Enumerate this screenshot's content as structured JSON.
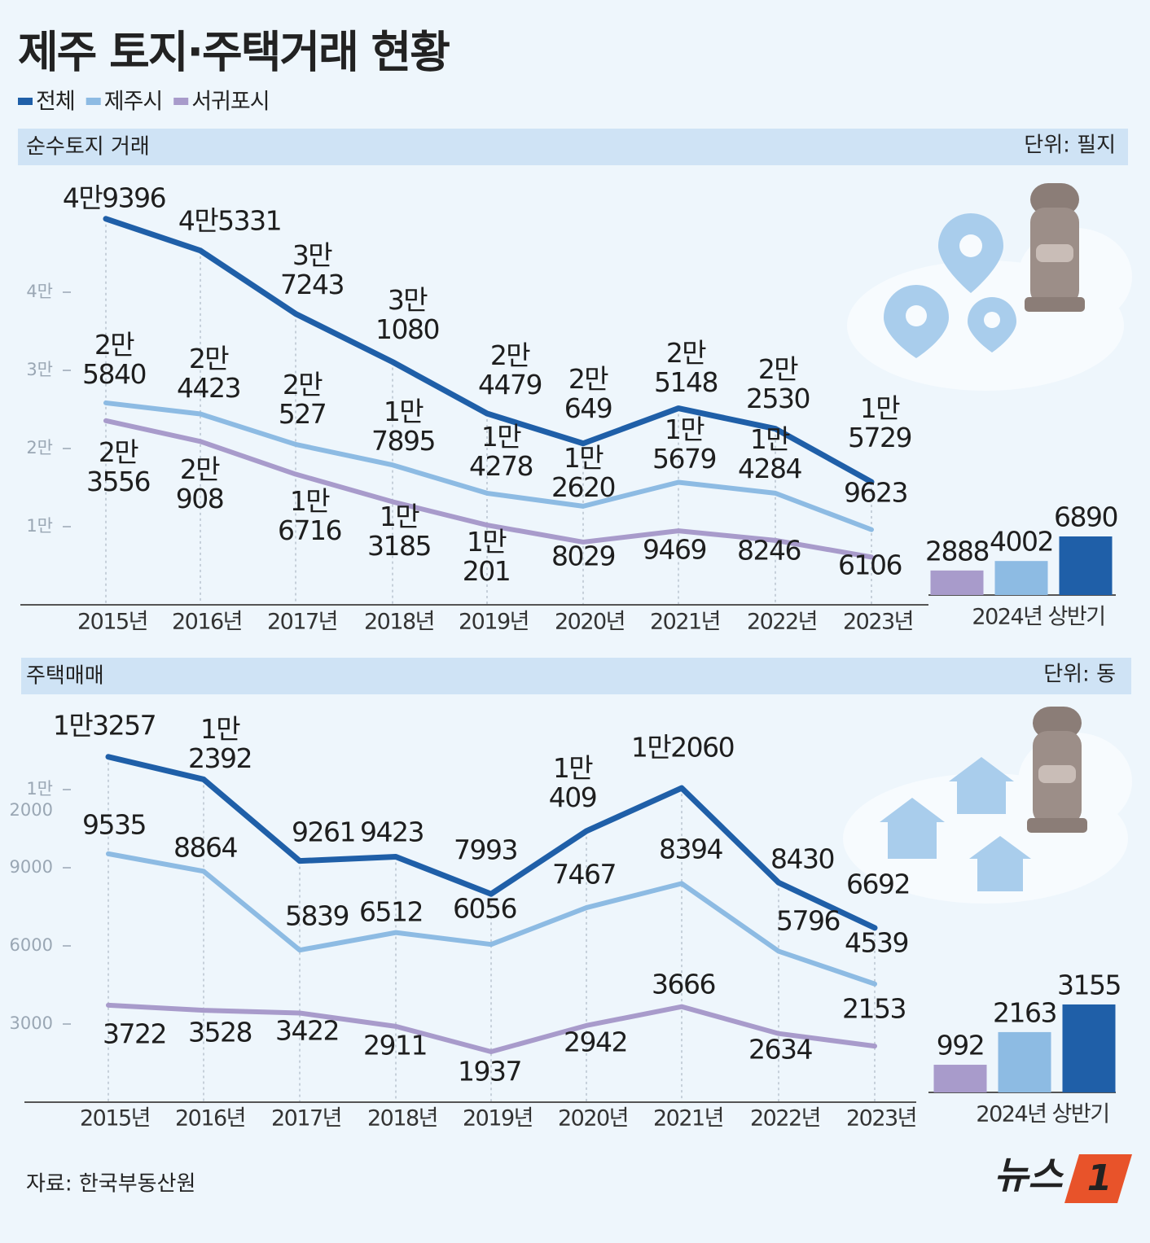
{
  "title": "제주 토지·주택거래 현황",
  "source": "자료: 한국부동산원",
  "logo": {
    "text": "뉴스",
    "mark": "1"
  },
  "chart_data": [
    {
      "type": "line",
      "subtitle": "순수토지 거래",
      "unit": "단위: 필지",
      "categories": [
        "2015년",
        "2016년",
        "2017년",
        "2018년",
        "2019년",
        "2020년",
        "2021년",
        "2022년",
        "2023년"
      ],
      "ylim": [
        0,
        50000
      ],
      "yticks": [
        {
          "value": 10000,
          "label": "1만"
        },
        {
          "value": 20000,
          "label": "2만"
        },
        {
          "value": 30000,
          "label": "3만"
        },
        {
          "value": 40000,
          "label": "4만"
        }
      ],
      "series": [
        {
          "name": "전체",
          "color": "#1f5fa8",
          "values": [
            49396,
            45331,
            37243,
            31080,
            24479,
            20649,
            25148,
            22530,
            15729
          ],
          "value_labels": [
            "4만9396",
            "4만5331",
            "3만\n7243",
            "3만\n1080",
            "2만\n4479",
            "2만\n649",
            "2만\n5148",
            "2만\n2530",
            "1만\n5729"
          ]
        },
        {
          "name": "제주시",
          "color": "#8dbbe3",
          "values": [
            25840,
            24423,
            20527,
            17895,
            14278,
            12620,
            15679,
            14284,
            9623
          ],
          "value_labels": [
            "2만\n5840",
            "2만\n4423",
            "2만\n527",
            "1만\n7895",
            "1만\n4278",
            "1만\n2620",
            "1만\n5679",
            "1만\n4284",
            "9623"
          ]
        },
        {
          "name": "서귀포시",
          "color": "#a89bcb",
          "values": [
            23556,
            20908,
            16716,
            13185,
            10201,
            8029,
            9469,
            8246,
            6106
          ],
          "value_labels": [
            "2만\n3556",
            "2만\n908",
            "1만\n6716",
            "1만\n3185",
            "1만\n201",
            "8029",
            "9469",
            "8246",
            "6106"
          ]
        }
      ]
    },
    {
      "type": "bar",
      "categories": [
        "2024년 상반기"
      ],
      "ylim": [
        0,
        10000
      ],
      "series": [
        {
          "color": "#a89bcb",
          "values": [
            2888
          ]
        },
        {
          "color": "#8dbbe3",
          "values": [
            4002
          ]
        },
        {
          "color": "#1f5fa8",
          "values": [
            6890
          ]
        }
      ]
    },
    {
      "type": "line",
      "subtitle": "주택매매",
      "unit": "단위: 동",
      "categories": [
        "2015년",
        "2016년",
        "2017년",
        "2018년",
        "2019년",
        "2020년",
        "2021년",
        "2022년",
        "2023년"
      ],
      "ylim": [
        0,
        14000
      ],
      "yticks": [
        3000,
        6000,
        9000,
        {
          "value": 12000,
          "label": "1만\n2000"
        }
      ],
      "series": [
        {
          "name": "전체",
          "color": "#1f5fa8",
          "values": [
            13257,
            12392,
            9261,
            9423,
            7993,
            10409,
            12060,
            8430,
            6692
          ],
          "value_labels": [
            "1만3257",
            "1만\n2392",
            "9261",
            "9423",
            "7993",
            "1만\n409",
            "1만2060",
            "8430",
            "6692"
          ]
        },
        {
          "name": "제주시",
          "color": "#8dbbe3",
          "values": [
            9535,
            8864,
            5839,
            6512,
            6056,
            7467,
            8394,
            5796,
            4539
          ]
        },
        {
          "name": "서귀포시",
          "color": "#a89bcb",
          "values": [
            3722,
            3528,
            3422,
            2911,
            1937,
            2942,
            3666,
            2634,
            2153
          ]
        }
      ]
    },
    {
      "type": "bar",
      "categories": [
        "2024년 상반기"
      ],
      "ylim": [
        0,
        4000
      ],
      "series": [
        {
          "color": "#a89bcb",
          "values": [
            992
          ]
        },
        {
          "color": "#8dbbe3",
          "values": [
            2163
          ]
        },
        {
          "color": "#1f5fa8",
          "values": [
            3155
          ]
        }
      ]
    }
  ]
}
